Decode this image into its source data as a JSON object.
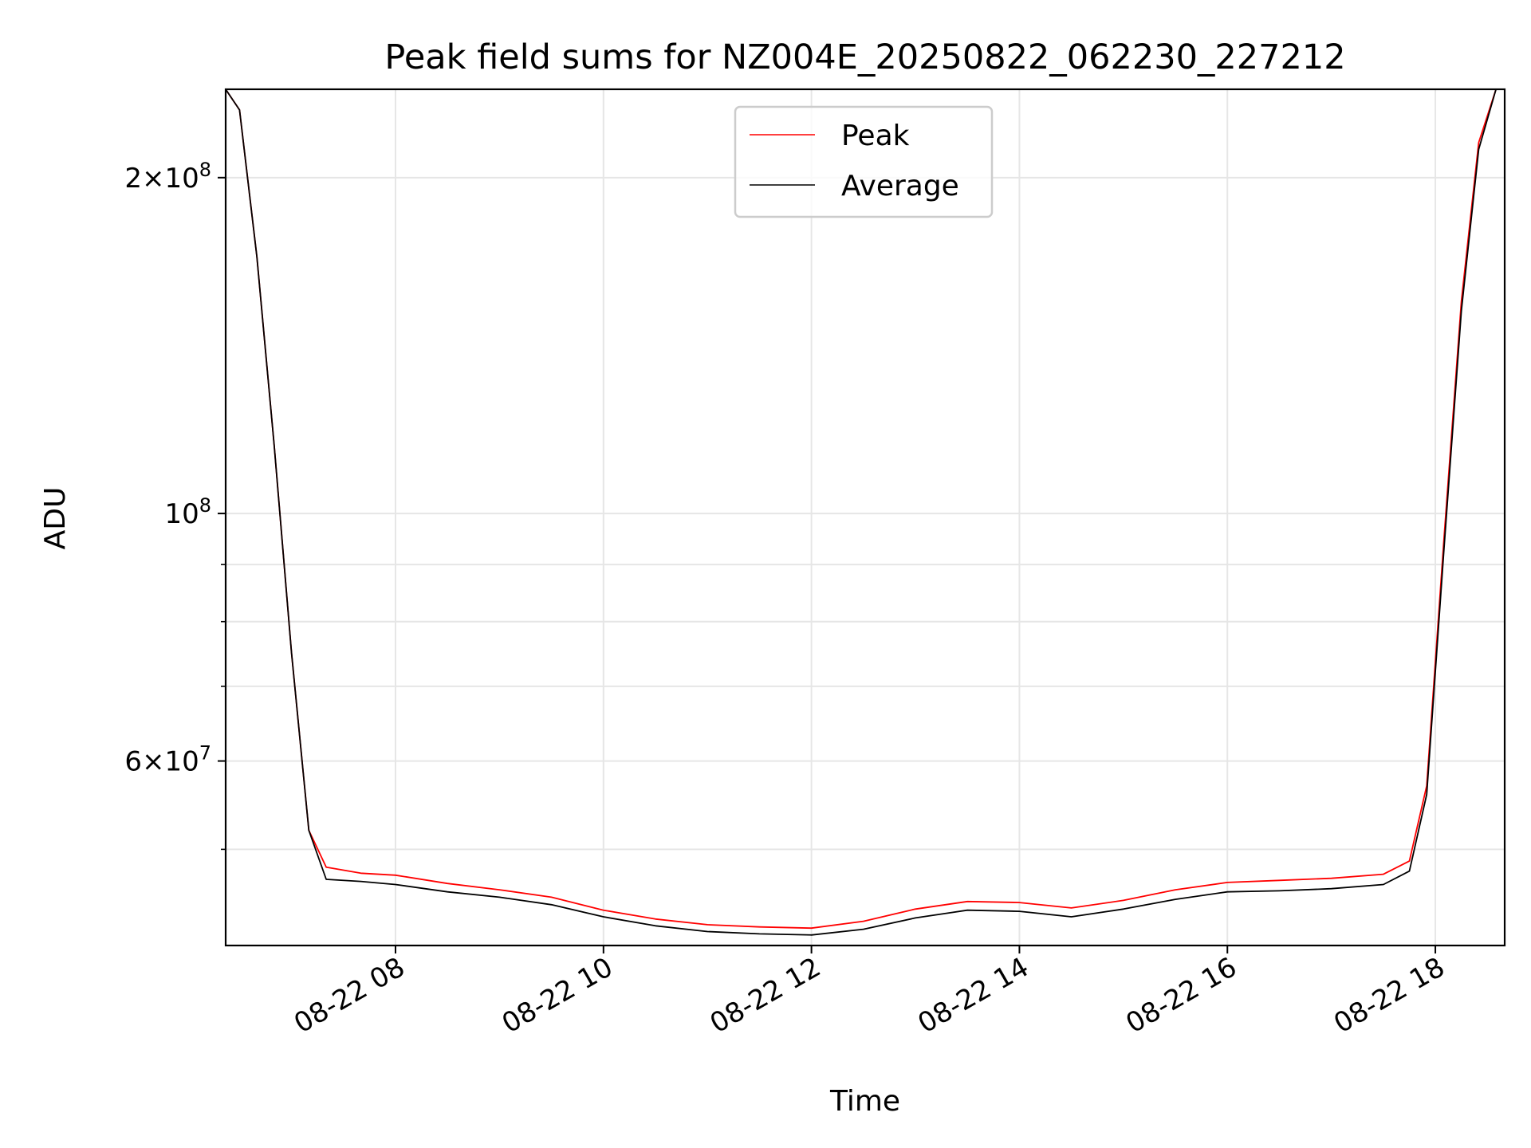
{
  "chart_data": {
    "type": "line",
    "title": "Peak field sums for NZ004E_20250822_062230_227212",
    "xlabel": "Time",
    "ylabel": "ADU",
    "xscale": "time",
    "yscale": "log",
    "xlim": [
      "2025-08-22 06:22",
      "2025-08-22 18:40"
    ],
    "ylim": [
      41000000,
      240000000
    ],
    "x_ticks": [
      {
        "t": "2025-08-22 08:00",
        "label": "08-22 08"
      },
      {
        "t": "2025-08-22 10:00",
        "label": "08-22 10"
      },
      {
        "t": "2025-08-22 12:00",
        "label": "08-22 12"
      },
      {
        "t": "2025-08-22 14:00",
        "label": "08-22 14"
      },
      {
        "t": "2025-08-22 16:00",
        "label": "08-22 16"
      },
      {
        "t": "2025-08-22 18:00",
        "label": "08-22 18"
      }
    ],
    "y_ticks": [
      {
        "value": 200000000,
        "mantissa": "2",
        "exp": "8"
      },
      {
        "value": 100000000,
        "mantissa": "",
        "exp": "8"
      },
      {
        "value": 60000000,
        "mantissa": "6",
        "exp": "7"
      }
    ],
    "y_minor_ticks": [
      50000000,
      70000000,
      80000000,
      90000000
    ],
    "grid": true,
    "legend": "upper center",
    "series": [
      {
        "name": "Peak",
        "color": "#ff0000",
        "x": [
          "2025-08-22 06:22",
          "2025-08-22 06:30",
          "2025-08-22 06:40",
          "2025-08-22 06:50",
          "2025-08-22 07:00",
          "2025-08-22 07:10",
          "2025-08-22 07:20",
          "2025-08-22 07:40",
          "2025-08-22 08:00",
          "2025-08-22 08:30",
          "2025-08-22 09:00",
          "2025-08-22 09:30",
          "2025-08-22 10:00",
          "2025-08-22 10:30",
          "2025-08-22 11:00",
          "2025-08-22 11:30",
          "2025-08-22 12:00",
          "2025-08-22 12:30",
          "2025-08-22 13:00",
          "2025-08-22 13:30",
          "2025-08-22 14:00",
          "2025-08-22 14:30",
          "2025-08-22 15:00",
          "2025-08-22 15:30",
          "2025-08-22 16:00",
          "2025-08-22 16:30",
          "2025-08-22 17:00",
          "2025-08-22 17:30",
          "2025-08-22 17:45",
          "2025-08-22 17:55",
          "2025-08-22 18:05",
          "2025-08-22 18:15",
          "2025-08-22 18:25",
          "2025-08-22 18:35"
        ],
        "values": [
          240000000,
          230000000,
          170000000,
          115000000,
          75000000,
          52000000,
          48200000,
          47600000,
          47400000,
          46600000,
          46000000,
          45300000,
          44100000,
          43300000,
          42800000,
          42600000,
          42500000,
          43100000,
          44200000,
          44900000,
          44800000,
          44300000,
          45000000,
          46000000,
          46700000,
          46900000,
          47100000,
          47500000,
          48800000,
          57000000,
          95000000,
          155000000,
          215000000,
          240000000
        ]
      },
      {
        "name": "Average",
        "color": "#000000",
        "x": [
          "2025-08-22 06:22",
          "2025-08-22 06:30",
          "2025-08-22 06:40",
          "2025-08-22 06:50",
          "2025-08-22 07:00",
          "2025-08-22 07:10",
          "2025-08-22 07:20",
          "2025-08-22 07:40",
          "2025-08-22 08:00",
          "2025-08-22 08:30",
          "2025-08-22 09:00",
          "2025-08-22 09:30",
          "2025-08-22 10:00",
          "2025-08-22 10:30",
          "2025-08-22 11:00",
          "2025-08-22 11:30",
          "2025-08-22 12:00",
          "2025-08-22 12:30",
          "2025-08-22 13:00",
          "2025-08-22 13:30",
          "2025-08-22 14:00",
          "2025-08-22 14:30",
          "2025-08-22 15:00",
          "2025-08-22 15:30",
          "2025-08-22 16:00",
          "2025-08-22 16:30",
          "2025-08-22 17:00",
          "2025-08-22 17:30",
          "2025-08-22 17:45",
          "2025-08-22 17:55",
          "2025-08-22 18:05",
          "2025-08-22 18:15",
          "2025-08-22 18:25",
          "2025-08-22 18:35"
        ],
        "values": [
          240000000,
          230000000,
          170000000,
          115000000,
          75000000,
          52000000,
          47000000,
          46800000,
          46500000,
          45800000,
          45300000,
          44600000,
          43500000,
          42700000,
          42200000,
          42000000,
          41900000,
          42400000,
          43400000,
          44100000,
          44000000,
          43500000,
          44200000,
          45100000,
          45800000,
          45900000,
          46100000,
          46500000,
          47800000,
          56000000,
          93000000,
          152000000,
          212000000,
          240000000
        ]
      }
    ]
  }
}
